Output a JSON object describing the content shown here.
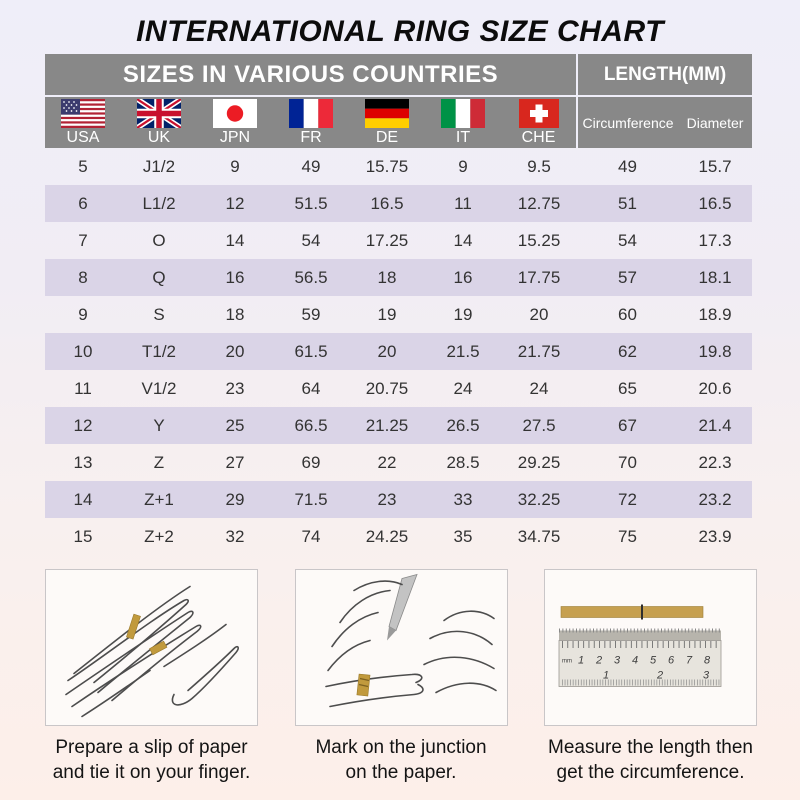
{
  "page": {
    "title": "INTERNATIONAL RING SIZE CHART"
  },
  "table": {
    "header_left": "SIZES IN VARIOUS COUNTRIES",
    "header_right": "LENGTH(MM)",
    "countries": [
      {
        "code": "USA",
        "flag_icon": "usa-flag-icon"
      },
      {
        "code": "UK",
        "flag_icon": "uk-flag-icon"
      },
      {
        "code": "JPN",
        "flag_icon": "japan-flag-icon"
      },
      {
        "code": "FR",
        "flag_icon": "france-flag-icon"
      },
      {
        "code": "DE",
        "flag_icon": "germany-flag-icon"
      },
      {
        "code": "IT",
        "flag_icon": "italy-flag-icon"
      },
      {
        "code": "CHE",
        "flag_icon": "switzerland-flag-icon"
      }
    ],
    "length_columns": [
      "Circumference",
      "Diameter"
    ]
  },
  "chart_data": {
    "type": "table",
    "title": "INTERNATIONAL RING SIZE CHART",
    "column_groups": [
      {
        "label": "SIZES IN VARIOUS COUNTRIES",
        "span": 7
      },
      {
        "label": "LENGTH(MM)",
        "span": 2
      }
    ],
    "columns": [
      "USA",
      "UK",
      "JPN",
      "FR",
      "DE",
      "IT",
      "CHE",
      "Circumference",
      "Diameter"
    ],
    "rows": [
      [
        "5",
        "J1/2",
        "9",
        "49",
        "15.75",
        "9",
        "9.5",
        "49",
        "15.7"
      ],
      [
        "6",
        "L1/2",
        "12",
        "51.5",
        "16.5",
        "11",
        "12.75",
        "51",
        "16.5"
      ],
      [
        "7",
        "O",
        "14",
        "54",
        "17.25",
        "14",
        "15.25",
        "54",
        "17.3"
      ],
      [
        "8",
        "Q",
        "16",
        "56.5",
        "18",
        "16",
        "17.75",
        "57",
        "18.1"
      ],
      [
        "9",
        "S",
        "18",
        "59",
        "19",
        "19",
        "20",
        "60",
        "18.9"
      ],
      [
        "10",
        "T1/2",
        "20",
        "61.5",
        "20",
        "21.5",
        "21.75",
        "62",
        "19.8"
      ],
      [
        "11",
        "V1/2",
        "23",
        "64",
        "20.75",
        "24",
        "24",
        "65",
        "20.6"
      ],
      [
        "12",
        "Y",
        "25",
        "66.5",
        "21.25",
        "26.5",
        "27.5",
        "67",
        "21.4"
      ],
      [
        "13",
        "Z",
        "27",
        "69",
        "22",
        "28.5",
        "29.25",
        "70",
        "22.3"
      ],
      [
        "14",
        "Z+1",
        "29",
        "71.5",
        "23",
        "33",
        "32.25",
        "72",
        "23.2"
      ],
      [
        "15",
        "Z+2",
        "32",
        "74",
        "24.25",
        "35",
        "34.75",
        "75",
        "23.9"
      ]
    ]
  },
  "instructions": [
    {
      "illustration": "hand-with-paper-slip",
      "caption_line1": "Prepare a slip of paper",
      "caption_line2": "and tie it on your finger."
    },
    {
      "illustration": "marking-pen-on-finger",
      "caption_line1": "Mark on the junction",
      "caption_line2": "on the paper."
    },
    {
      "illustration": "ruler-measuring-strip",
      "caption_line1": "Measure the length then",
      "caption_line2": "get the circumference."
    }
  ],
  "ruler": {
    "unit_label": "mm",
    "cm_labels": [
      "1",
      "2",
      "3",
      "4",
      "5",
      "6",
      "7",
      "8"
    ],
    "inch_labels": [
      "1",
      "2",
      "3"
    ]
  },
  "colors": {
    "header_gray": "#888888",
    "row_shaded": "#dad4e7",
    "background_top": "#efeef9",
    "background_bottom": "#fdefe9",
    "paper_slip_gold": "#c19a3d"
  }
}
